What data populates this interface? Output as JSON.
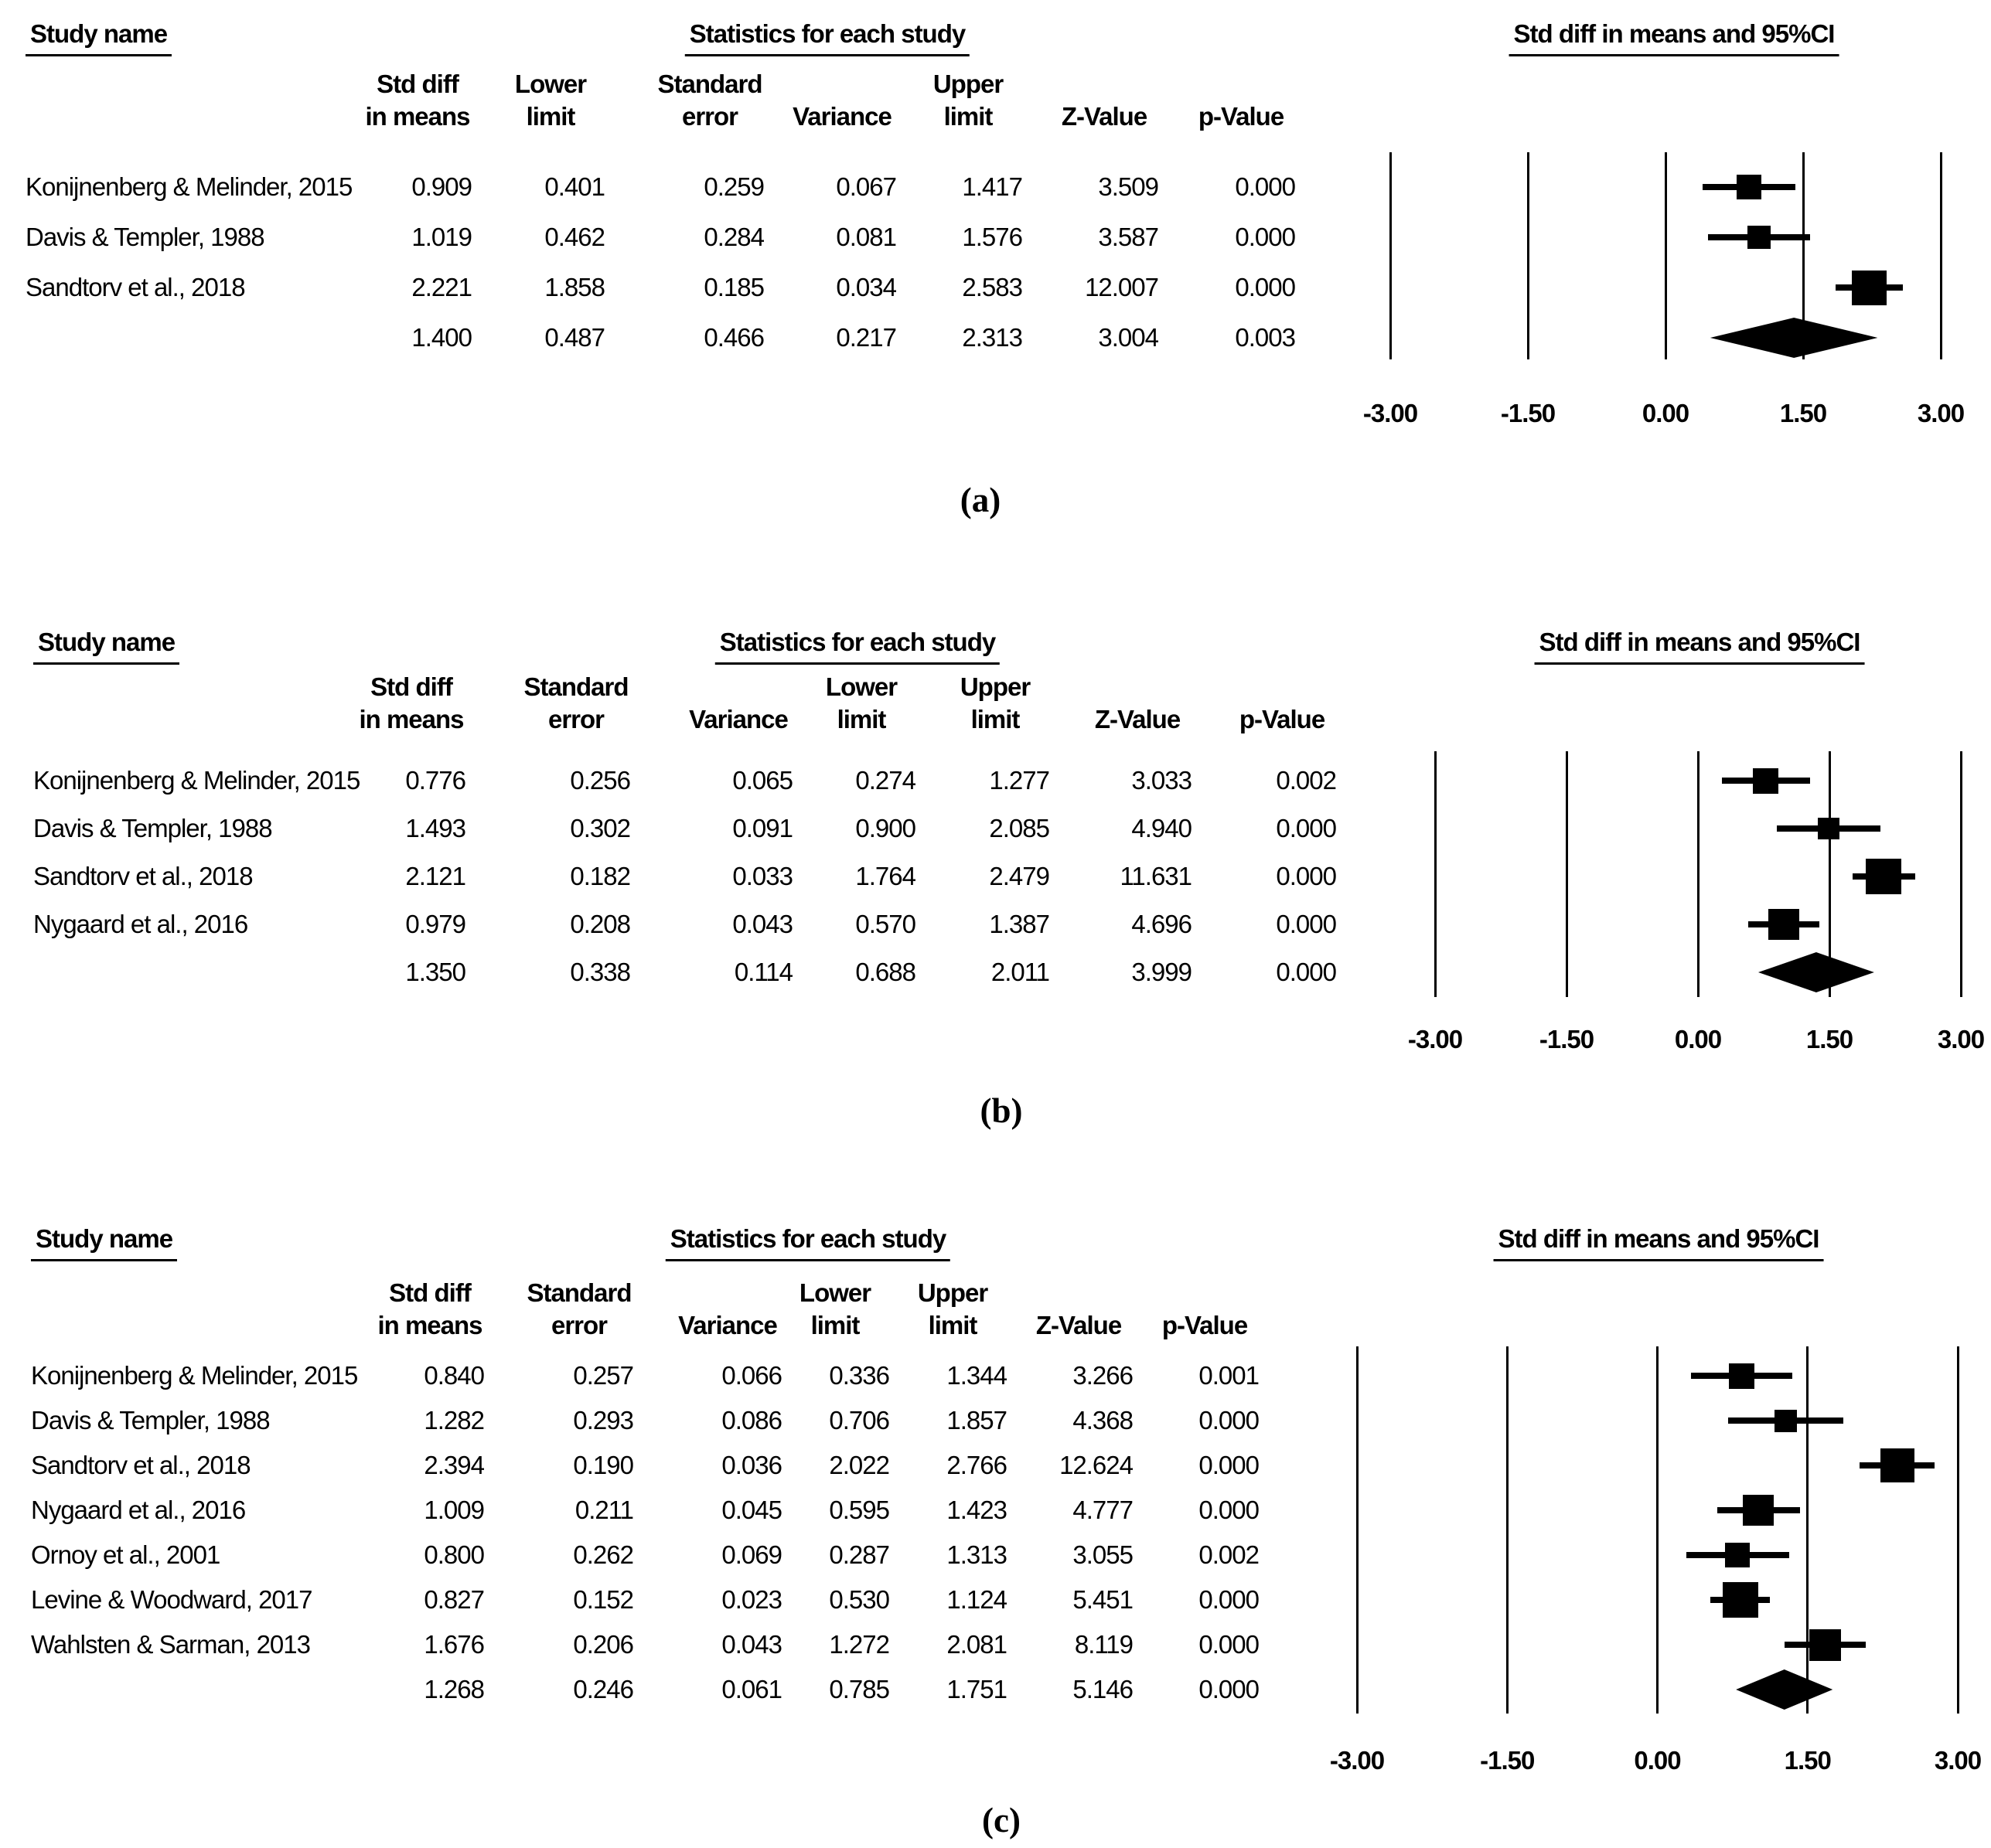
{
  "chart_data": [
    {
      "type": "forest",
      "panel": "a",
      "caption": "(a)",
      "headers": {
        "study": "Study name",
        "stats": "Statistics for each study",
        "plot": "Std diff in means and 95%CI"
      },
      "columns": [
        [
          "Std diff",
          "in means"
        ],
        [
          "Lower",
          "limit"
        ],
        [
          "Standard",
          "error"
        ],
        [
          "",
          "Variance"
        ],
        [
          "Upper",
          "limit"
        ],
        [
          "",
          "Z-Value"
        ],
        [
          "",
          "p-Value"
        ]
      ],
      "xlim": [
        -3,
        3
      ],
      "axis_ticks": [
        "-3.00",
        "-1.50",
        "0.00",
        "1.50",
        "3.00"
      ],
      "studies": [
        {
          "name": "Konijnenberg & Melinder, 2015",
          "values": [
            "0.909",
            "0.401",
            "0.259",
            "0.067",
            "1.417",
            "3.509",
            "0.000"
          ],
          "mean": 0.909,
          "ll": 0.401,
          "ul": 1.417,
          "size": 32
        },
        {
          "name": "Davis & Templer, 1988",
          "values": [
            "1.019",
            "0.462",
            "0.284",
            "0.081",
            "1.576",
            "3.587",
            "0.000"
          ],
          "mean": 1.019,
          "ll": 0.462,
          "ul": 1.576,
          "size": 30
        },
        {
          "name": "Sandtorv et al., 2018",
          "values": [
            "2.221",
            "1.858",
            "0.185",
            "0.034",
            "2.583",
            "12.007",
            "0.000"
          ],
          "mean": 2.221,
          "ll": 1.858,
          "ul": 2.583,
          "size": 45
        }
      ],
      "summary": {
        "values": [
          "1.400",
          "0.487",
          "0.466",
          "0.217",
          "2.313",
          "3.004",
          "0.003"
        ],
        "mean": 1.4,
        "ll": 0.487,
        "ul": 2.313
      }
    },
    {
      "type": "forest",
      "panel": "b",
      "caption": "(b)",
      "headers": {
        "study": "Study name",
        "stats": "Statistics for each study",
        "plot": "Std diff in means and 95%CI"
      },
      "columns": [
        [
          "Std diff",
          "in means"
        ],
        [
          "Standard",
          "error"
        ],
        [
          "",
          "Variance"
        ],
        [
          "Lower",
          "limit"
        ],
        [
          "Upper",
          "limit"
        ],
        [
          "",
          "Z-Value"
        ],
        [
          "",
          "p-Value"
        ]
      ],
      "xlim": [
        -3,
        3
      ],
      "axis_ticks": [
        "-3.00",
        "-1.50",
        "0.00",
        "1.50",
        "3.00"
      ],
      "studies": [
        {
          "name": "Konijnenberg & Melinder, 2015",
          "values": [
            "0.776",
            "0.256",
            "0.065",
            "0.274",
            "1.277",
            "3.033",
            "0.002"
          ],
          "mean": 0.776,
          "ll": 0.274,
          "ul": 1.277,
          "size": 33
        },
        {
          "name": "Davis & Templer, 1988",
          "values": [
            "1.493",
            "0.302",
            "0.091",
            "0.900",
            "2.085",
            "4.940",
            "0.000"
          ],
          "mean": 1.493,
          "ll": 0.9,
          "ul": 2.085,
          "size": 28
        },
        {
          "name": "Sandtorv et al., 2018",
          "values": [
            "2.121",
            "0.182",
            "0.033",
            "1.764",
            "2.479",
            "11.631",
            "0.000"
          ],
          "mean": 2.121,
          "ll": 1.764,
          "ul": 2.479,
          "size": 46
        },
        {
          "name": "Nygaard et al., 2016",
          "values": [
            "0.979",
            "0.208",
            "0.043",
            "0.570",
            "1.387",
            "4.696",
            "0.000"
          ],
          "mean": 0.979,
          "ll": 0.57,
          "ul": 1.387,
          "size": 40
        }
      ],
      "summary": {
        "values": [
          "1.350",
          "0.338",
          "0.114",
          "0.688",
          "2.011",
          "3.999",
          "0.000"
        ],
        "mean": 1.35,
        "ll": 0.688,
        "ul": 2.011
      }
    },
    {
      "type": "forest",
      "panel": "c",
      "caption": "(c)",
      "headers": {
        "study": "Study name",
        "stats": "Statistics for each study",
        "plot": "Std diff in means and 95%CI"
      },
      "columns": [
        [
          "Std diff",
          "in means"
        ],
        [
          "Standard",
          "error"
        ],
        [
          "",
          "Variance"
        ],
        [
          "Lower",
          "limit"
        ],
        [
          "Upper",
          "limit"
        ],
        [
          "",
          "Z-Value"
        ],
        [
          "",
          "p-Value"
        ]
      ],
      "xlim": [
        -3,
        3
      ],
      "axis_ticks": [
        "-3.00",
        "-1.50",
        "0.00",
        "1.50",
        "3.00"
      ],
      "studies": [
        {
          "name": "Konijnenberg & Melinder, 2015",
          "values": [
            "0.840",
            "0.257",
            "0.066",
            "0.336",
            "1.344",
            "3.266",
            "0.001"
          ],
          "mean": 0.84,
          "ll": 0.336,
          "ul": 1.344,
          "size": 33
        },
        {
          "name": "Davis & Templer, 1988",
          "values": [
            "1.282",
            "0.293",
            "0.086",
            "0.706",
            "1.857",
            "4.368",
            "0.000"
          ],
          "mean": 1.282,
          "ll": 0.706,
          "ul": 1.857,
          "size": 29
        },
        {
          "name": "Sandtorv et al., 2018",
          "values": [
            "2.394",
            "0.190",
            "0.036",
            "2.022",
            "2.766",
            "12.624",
            "0.000"
          ],
          "mean": 2.394,
          "ll": 2.022,
          "ul": 2.766,
          "size": 44
        },
        {
          "name": "Nygaard et al., 2016",
          "values": [
            "1.009",
            "0.211",
            "0.045",
            "0.595",
            "1.423",
            "4.777",
            "0.000"
          ],
          "mean": 1.009,
          "ll": 0.595,
          "ul": 1.423,
          "size": 40
        },
        {
          "name": "Ornoy et al., 2001",
          "values": [
            "0.800",
            "0.262",
            "0.069",
            "0.287",
            "1.313",
            "3.055",
            "0.002"
          ],
          "mean": 0.8,
          "ll": 0.287,
          "ul": 1.313,
          "size": 32
        },
        {
          "name": "Levine & Woodward, 2017",
          "values": [
            "0.827",
            "0.152",
            "0.023",
            "0.530",
            "1.124",
            "5.451",
            "0.000"
          ],
          "mean": 0.827,
          "ll": 0.53,
          "ul": 1.124,
          "size": 46
        },
        {
          "name": "Wahlsten & Sarman, 2013",
          "values": [
            "1.676",
            "0.206",
            "0.043",
            "1.272",
            "2.081",
            "8.119",
            "0.000"
          ],
          "mean": 1.676,
          "ll": 1.272,
          "ul": 2.081,
          "size": 41
        }
      ],
      "summary": {
        "values": [
          "1.268",
          "0.246",
          "0.061",
          "0.785",
          "1.751",
          "5.146",
          "0.000"
        ],
        "mean": 1.268,
        "ll": 0.785,
        "ul": 1.751
      }
    }
  ]
}
